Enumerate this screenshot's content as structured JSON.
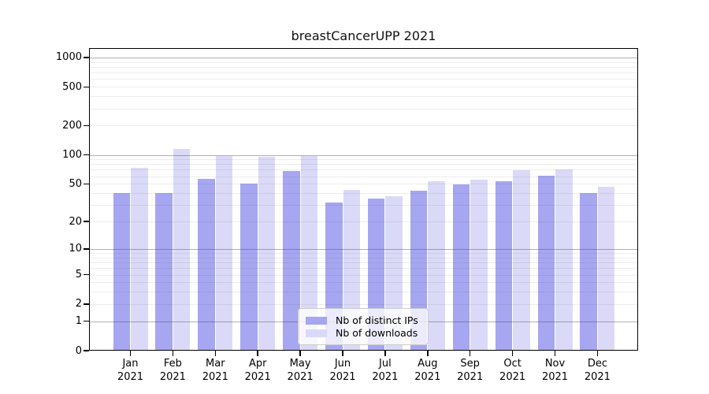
{
  "title": "breastCancerUPP 2021",
  "chart_data": {
    "type": "bar",
    "title": "breastCancerUPP 2021",
    "categories": [
      "Jan",
      "Feb",
      "Mar",
      "Apr",
      "May",
      "Jun",
      "Jul",
      "Aug",
      "Sep",
      "Oct",
      "Nov",
      "Dec"
    ],
    "year": "2021",
    "series": [
      {
        "name": "Nb of distinct IPs",
        "color": "#a6a6f1",
        "values": [
          40,
          40,
          56,
          50,
          68,
          32,
          35,
          42,
          49,
          53,
          61,
          40
        ]
      },
      {
        "name": "Nb of downloads",
        "color": "#dadaf8",
        "values": [
          73,
          115,
          97,
          95,
          98,
          43,
          37,
          53,
          55,
          69,
          70,
          47
        ]
      }
    ],
    "yscale": "log1p",
    "ylim": [
      0,
      1250
    ],
    "yticks": [
      0,
      1,
      2,
      5,
      10,
      20,
      50,
      100,
      200,
      500,
      1000
    ],
    "grid": {
      "major_lines": [
        1,
        10,
        100,
        1000
      ],
      "minor_mantissas": [
        2,
        3,
        4,
        5,
        6,
        7,
        8,
        9
      ],
      "minor_decades": [
        1,
        10,
        100
      ]
    },
    "legend_position": "lower center",
    "xlabel": "",
    "ylabel": ""
  },
  "colors": {
    "bar_ips": "#a6a6f1",
    "bar_downloads": "#dadaf8",
    "grid_major": "#b3b3b3",
    "grid_minor": "#ebebeb",
    "spine": "#000000",
    "legend_border": "#cccccc"
  }
}
